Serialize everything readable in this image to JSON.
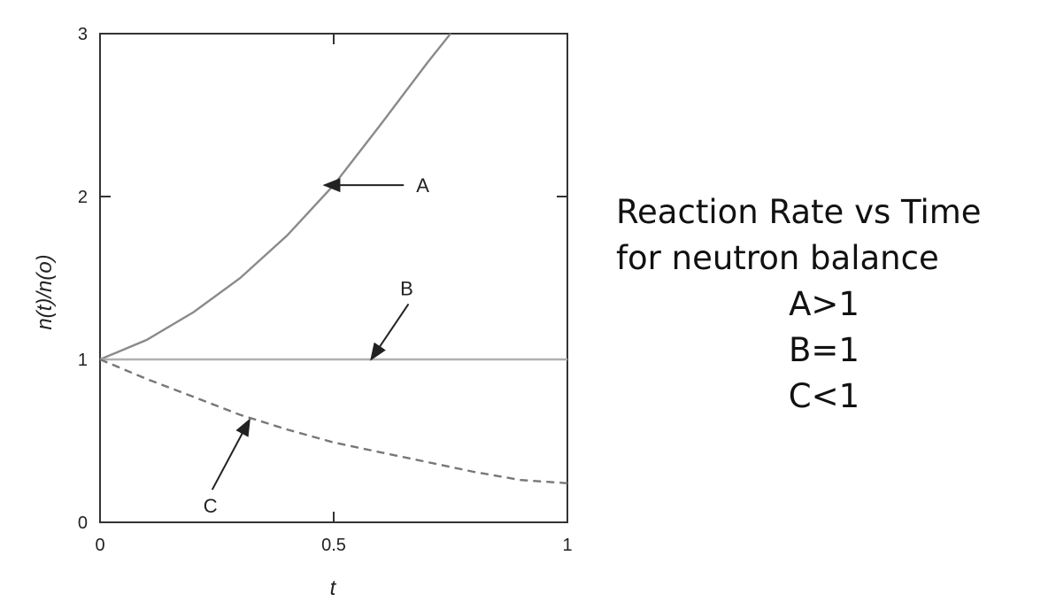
{
  "chart_data": {
    "type": "line",
    "xlabel": "t",
    "ylabel": "n(t)/n(o)",
    "xlim": [
      0,
      1
    ],
    "ylim": [
      0,
      3
    ],
    "x_ticks": [
      "0",
      "0.5",
      "1"
    ],
    "y_ticks": [
      "0",
      "1",
      "2",
      "3"
    ],
    "grid": false,
    "series": [
      {
        "name": "A",
        "style": "solid",
        "color": "#8a8a8a",
        "x": [
          0,
          0.1,
          0.2,
          0.3,
          0.4,
          0.5,
          0.6,
          0.7,
          0.75
        ],
        "y": [
          1.0,
          1.12,
          1.29,
          1.5,
          1.76,
          2.07,
          2.44,
          2.82,
          3.0
        ]
      },
      {
        "name": "B",
        "style": "solid",
        "color": "#b0b0b0",
        "x": [
          0,
          1
        ],
        "y": [
          1.0,
          1.0
        ]
      },
      {
        "name": "C",
        "style": "dashed",
        "color": "#777777",
        "x": [
          0,
          0.1,
          0.2,
          0.3,
          0.4,
          0.5,
          0.6,
          0.7,
          0.8,
          0.9,
          1.0
        ],
        "y": [
          1.0,
          0.88,
          0.77,
          0.66,
          0.57,
          0.49,
          0.43,
          0.37,
          0.31,
          0.26,
          0.24
        ]
      }
    ],
    "annotations": [
      {
        "label": "A",
        "target": [
          0.48,
          2.07
        ],
        "from": [
          0.65,
          2.07
        ]
      },
      {
        "label": "B",
        "target": [
          0.58,
          1.0
        ],
        "from": [
          0.66,
          1.34
        ]
      },
      {
        "label": "C",
        "target": [
          0.32,
          0.63
        ],
        "from": [
          0.24,
          0.2
        ]
      }
    ]
  },
  "caption": {
    "line1": "Reaction Rate vs Time",
    "line2": "for neutron balance",
    "line3": "A>1",
    "line4": "B=1",
    "line5": "C<1"
  }
}
